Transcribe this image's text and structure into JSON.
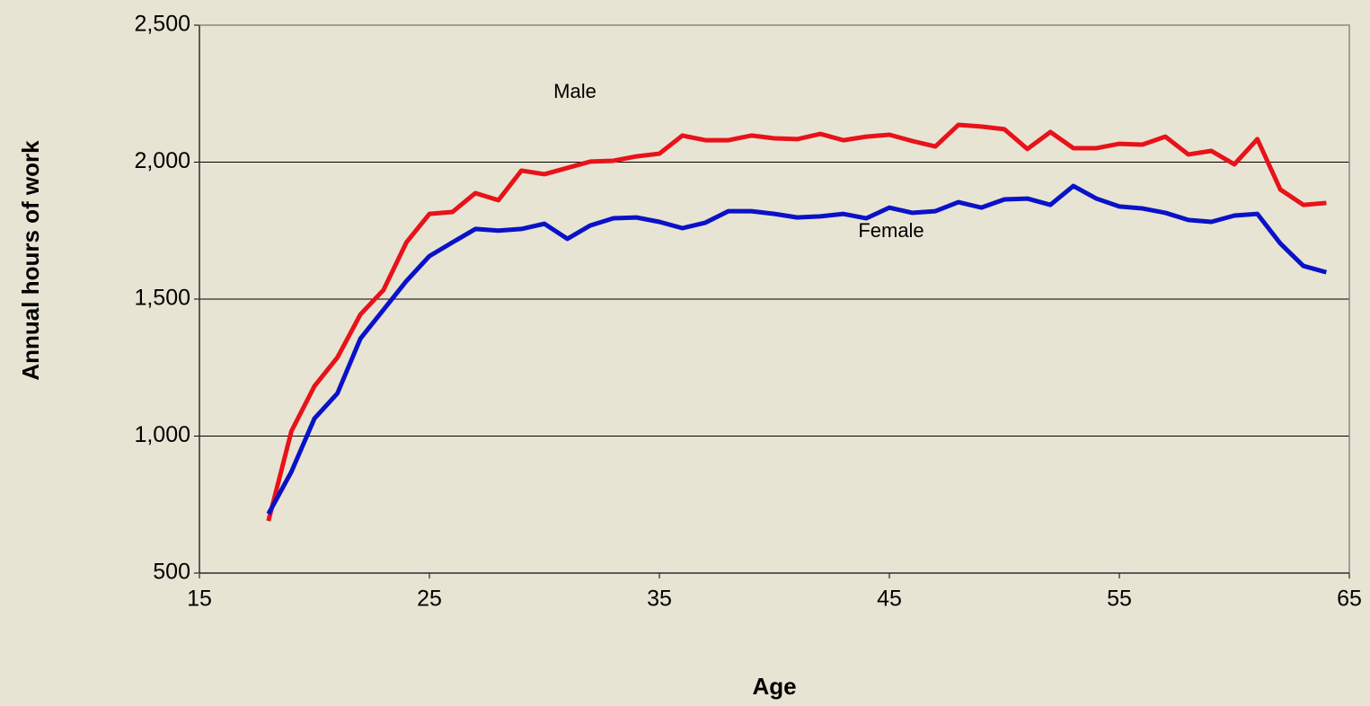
{
  "chart_data": {
    "type": "line",
    "xlabel": "Age",
    "ylabel": "Annual hours of work",
    "x": [
      18,
      19,
      20,
      21,
      22,
      23,
      24,
      25,
      26,
      27,
      28,
      29,
      30,
      31,
      32,
      33,
      34,
      35,
      36,
      37,
      38,
      39,
      40,
      41,
      42,
      43,
      44,
      45,
      46,
      47,
      48,
      49,
      50,
      51,
      52,
      53,
      54,
      55,
      56,
      57,
      58,
      59,
      60,
      61,
      62,
      63,
      64
    ],
    "series": [
      {
        "name": "Male",
        "color": "#e8121a",
        "values": [
          690,
          1018,
          1182,
          1287,
          1444,
          1533,
          1707,
          1811,
          1818,
          1887,
          1861,
          1969,
          1956,
          1979,
          2002,
          2005,
          2021,
          2031,
          2097,
          2080,
          2080,
          2097,
          2087,
          2084,
          2103,
          2080,
          2093,
          2100,
          2077,
          2057,
          2136,
          2130,
          2120,
          2048,
          2110,
          2051,
          2051,
          2067,
          2064,
          2093,
          2028,
          2041,
          1992,
          2084,
          1900,
          1844,
          1851
        ]
      },
      {
        "name": "Female",
        "color": "#0a12c8",
        "values": [
          716,
          870,
          1064,
          1156,
          1356,
          1461,
          1566,
          1657,
          1707,
          1756,
          1750,
          1756,
          1775,
          1720,
          1769,
          1795,
          1798,
          1782,
          1759,
          1779,
          1821,
          1821,
          1811,
          1798,
          1802,
          1811,
          1795,
          1834,
          1815,
          1821,
          1854,
          1834,
          1864,
          1867,
          1844,
          1913,
          1867,
          1838,
          1831,
          1815,
          1789,
          1782,
          1805,
          1811,
          1703,
          1621,
          1598
        ]
      }
    ],
    "xlim": [
      15,
      65
    ],
    "xticks": [
      15,
      25,
      35,
      45,
      55,
      65
    ],
    "ylim": [
      500,
      2500
    ],
    "yticks": [
      500,
      {
        "value": 1000,
        "label": "1,000"
      },
      {
        "value": 1500,
        "label": "1,500"
      },
      {
        "value": 2000,
        "label": "2,000"
      },
      {
        "value": 2500,
        "label": "2,500"
      }
    ],
    "grid": true
  }
}
